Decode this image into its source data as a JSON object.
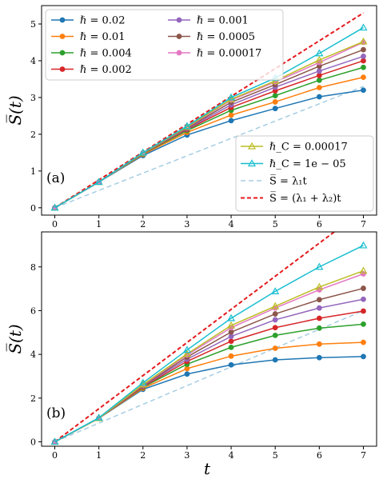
{
  "chart_data": [
    {
      "type": "line",
      "panel_label": "(a)",
      "ylabel": "S̅(t)",
      "xlabel": "",
      "xlim": [
        -0.3,
        7.3
      ],
      "ylim": [
        -0.2,
        5.5
      ],
      "xticks": [
        0,
        1,
        2,
        3,
        4,
        5,
        6,
        7
      ],
      "yticks": [
        0,
        1,
        2,
        3,
        4,
        5
      ],
      "grid": false,
      "legend_placement": [
        "upper-left",
        "lower-right"
      ],
      "x": [
        0,
        1,
        2,
        3,
        4,
        5,
        6,
        7
      ],
      "series": [
        {
          "name": "ℏ = 0.02",
          "color": "#1f77b4",
          "marker": "circle",
          "values": [
            0,
            0.7,
            1.42,
            1.98,
            2.37,
            2.7,
            3.02,
            3.2
          ]
        },
        {
          "name": "ℏ = 0.01",
          "color": "#ff7f0e",
          "marker": "circle",
          "values": [
            0,
            0.7,
            1.45,
            2.05,
            2.52,
            2.88,
            3.27,
            3.55
          ]
        },
        {
          "name": "ℏ = 0.004",
          "color": "#2ca02c",
          "marker": "circle",
          "values": [
            0,
            0.7,
            1.47,
            2.1,
            2.65,
            3.05,
            3.47,
            3.82
          ]
        },
        {
          "name": "ℏ = 0.002",
          "color": "#d62728",
          "marker": "circle",
          "values": [
            0,
            0.7,
            1.48,
            2.13,
            2.73,
            3.18,
            3.6,
            4.0
          ]
        },
        {
          "name": "ℏ = 0.001",
          "color": "#9467bd",
          "marker": "circle",
          "values": [
            0,
            0.7,
            1.48,
            2.15,
            2.8,
            3.28,
            3.72,
            4.12
          ]
        },
        {
          "name": "ℏ = 0.0005",
          "color": "#8c564b",
          "marker": "circle",
          "values": [
            0,
            0.7,
            1.49,
            2.17,
            2.87,
            3.35,
            3.85,
            4.3
          ]
        },
        {
          "name": "ℏ = 0.00017",
          "color": "#e377c2",
          "marker": "circle",
          "values": [
            0,
            0.7,
            1.49,
            2.19,
            2.93,
            3.42,
            3.95,
            4.5
          ]
        },
        {
          "name": "ℏ_C = 0.00017",
          "color": "#bcbd22",
          "marker": "triangle",
          "values": [
            0,
            0.7,
            1.49,
            2.2,
            2.95,
            3.45,
            4.02,
            4.52
          ]
        },
        {
          "name": "ℏ_C = 1e − 05",
          "color": "#17becf",
          "marker": "triangle",
          "values": [
            0,
            0.7,
            1.5,
            2.22,
            3.0,
            3.53,
            4.2,
            4.9
          ]
        },
        {
          "name": "S̅ = λ₁t",
          "color": "#a6cee3",
          "dash": "dashed",
          "x": [
            0,
            7
          ],
          "values": [
            0,
            3.3
          ]
        },
        {
          "name": "S̅ = (λ₁ + λ₂)t",
          "color": "#e41a1c",
          "dash": "dashed",
          "x": [
            0,
            7
          ],
          "values": [
            0,
            5.3
          ]
        }
      ]
    },
    {
      "type": "line",
      "panel_label": "(b)",
      "ylabel": "S̅(t)",
      "xlabel": "t",
      "xlim": [
        -0.3,
        7.3
      ],
      "ylim": [
        -0.2,
        9.6
      ],
      "xticks": [
        0,
        1,
        2,
        3,
        4,
        5,
        6,
        7
      ],
      "yticks": [
        0,
        2,
        4,
        6,
        8
      ],
      "grid": false,
      "x": [
        0,
        1,
        2,
        3,
        4,
        5,
        6,
        7
      ],
      "series": [
        {
          "name": "ℏ = 0.02",
          "color": "#1f77b4",
          "marker": "circle",
          "values": [
            0,
            1.08,
            2.4,
            3.1,
            3.52,
            3.75,
            3.85,
            3.9
          ]
        },
        {
          "name": "ℏ = 0.01",
          "color": "#ff7f0e",
          "marker": "circle",
          "values": [
            0,
            1.08,
            2.45,
            3.35,
            3.92,
            4.28,
            4.47,
            4.55
          ]
        },
        {
          "name": "ℏ = 0.004",
          "color": "#2ca02c",
          "marker": "circle",
          "values": [
            0,
            1.08,
            2.5,
            3.55,
            4.32,
            4.87,
            5.2,
            5.38
          ]
        },
        {
          "name": "ℏ = 0.002",
          "color": "#d62728",
          "marker": "circle",
          "values": [
            0,
            1.08,
            2.52,
            3.68,
            4.6,
            5.22,
            5.65,
            5.98
          ]
        },
        {
          "name": "ℏ = 0.001",
          "color": "#9467bd",
          "marker": "circle",
          "values": [
            0,
            1.08,
            2.55,
            3.78,
            4.82,
            5.58,
            6.12,
            6.52
          ]
        },
        {
          "name": "ℏ = 0.0005",
          "color": "#8c564b",
          "marker": "circle",
          "values": [
            0,
            1.08,
            2.57,
            3.88,
            5.02,
            5.85,
            6.5,
            7.02
          ]
        },
        {
          "name": "ℏ = 0.00017",
          "color": "#e377c2",
          "marker": "circle",
          "values": [
            0,
            1.08,
            2.6,
            3.97,
            5.22,
            6.12,
            6.95,
            7.68
          ]
        },
        {
          "name": "ℏ_C = 0.00017",
          "color": "#bcbd22",
          "marker": "triangle",
          "values": [
            0,
            1.08,
            2.62,
            4.02,
            5.32,
            6.2,
            7.08,
            7.82
          ]
        },
        {
          "name": "ℏ_C = 1e − 05",
          "color": "#17becf",
          "marker": "triangle",
          "values": [
            0,
            1.1,
            2.7,
            4.2,
            5.65,
            6.88,
            8.0,
            8.98
          ]
        },
        {
          "name": "S̅ = λ₁t",
          "color": "#a6cee3",
          "dash": "dashed",
          "x": [
            0,
            7
          ],
          "values": [
            0,
            6.0
          ]
        },
        {
          "name": "S̅ = (λ₁ + λ₂)t",
          "color": "#e41a1c",
          "dash": "dashed",
          "x": [
            0,
            7
          ],
          "values": [
            0,
            10.6
          ]
        }
      ]
    }
  ]
}
